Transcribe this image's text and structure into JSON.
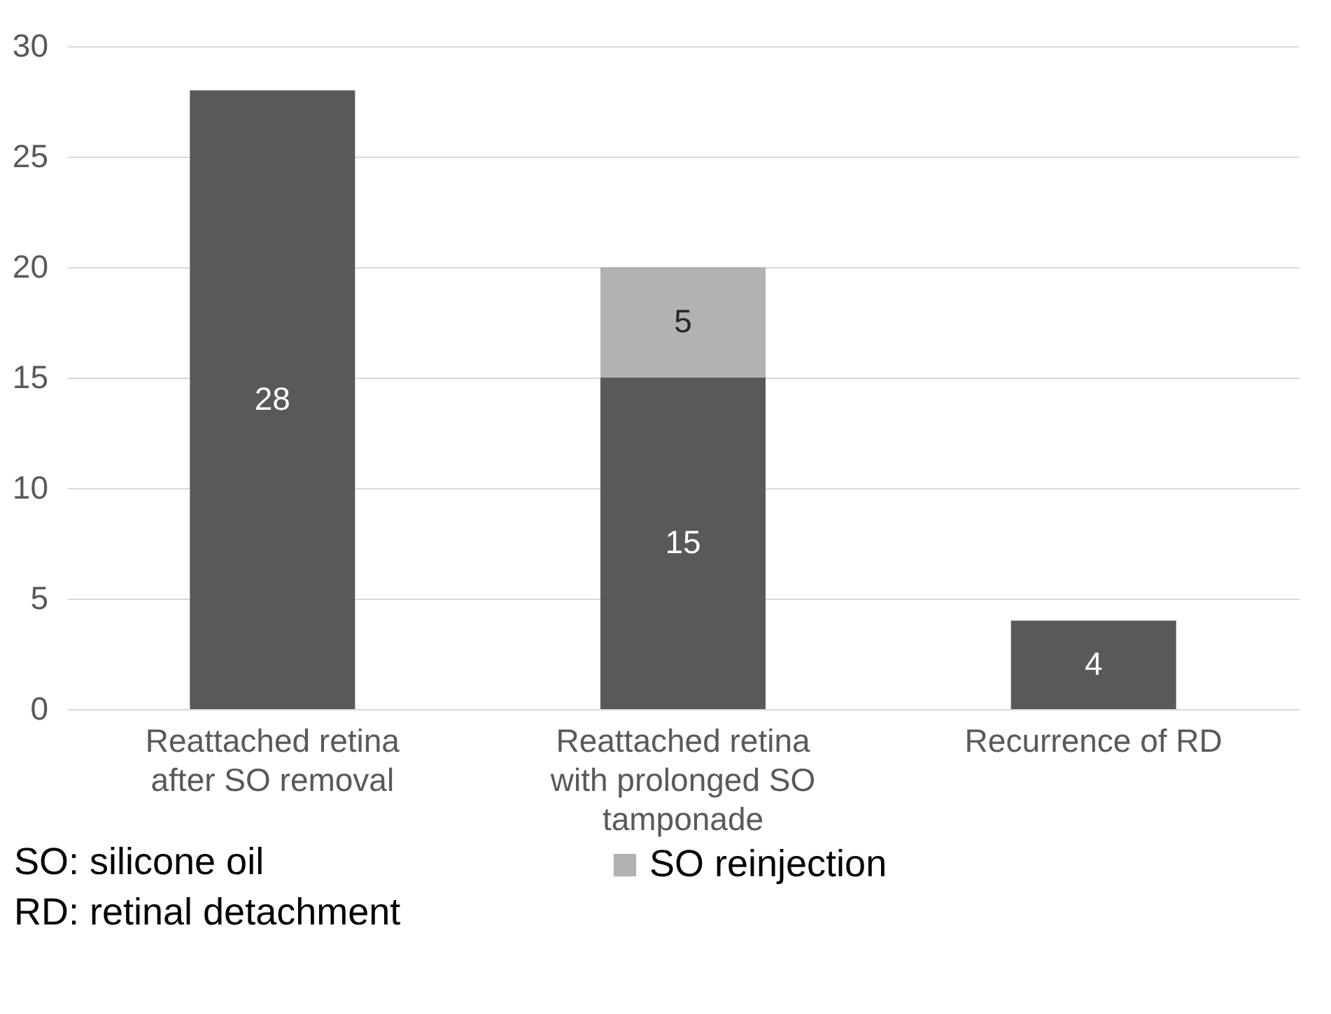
{
  "chart_data": {
    "type": "bar",
    "categories": [
      "Reattached retina after SO removal",
      "Reattached retina with prolonged SO tamponade",
      "Recurrence of RD"
    ],
    "series": [
      {
        "color": "#595959",
        "values": [
          28,
          15,
          4
        ]
      },
      {
        "name": "SO reinjection",
        "color": "#b2b2b2",
        "values": [
          null,
          5,
          null
        ]
      }
    ],
    "stacked": true,
    "data_labels": true,
    "ylim": [
      0,
      30
    ],
    "yticks": [
      0,
      5,
      10,
      15,
      20,
      25,
      30
    ],
    "grid": "y",
    "legend": "bottom",
    "annotations": [
      "SO: silicone oil",
      "RD: retinal detachment"
    ]
  }
}
